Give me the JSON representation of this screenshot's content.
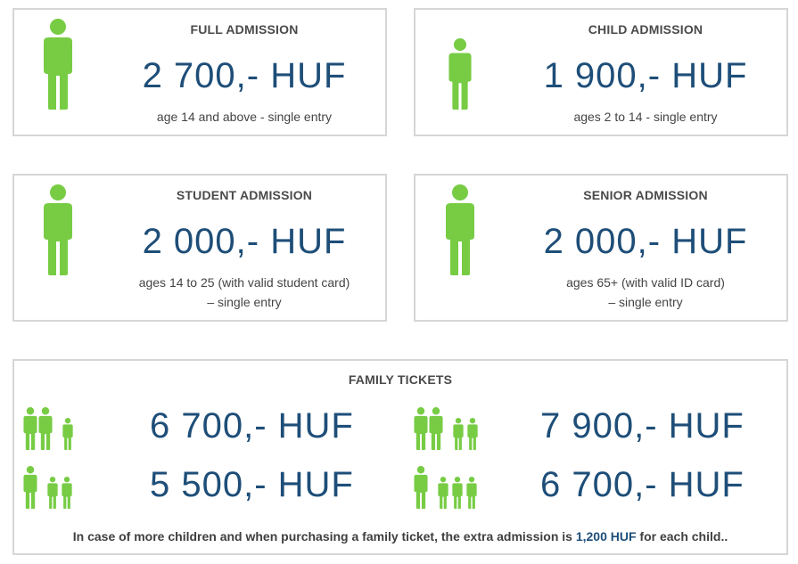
{
  "colors": {
    "accent": "#1e4e78",
    "icon_green": "#77cc44",
    "border": "#d6d6d6",
    "text": "#444444"
  },
  "tickets": [
    {
      "title": "FULL ADMISSION",
      "price": "2 700,- HUF",
      "desc_line1": "age 14 and above - single entry",
      "desc_line2": "",
      "icon": "adult-person-icon"
    },
    {
      "title": "CHILD ADMISSION",
      "price": "1 900,- HUF",
      "desc_line1": "ages 2 to 14 - single entry",
      "desc_line2": "",
      "icon": "child-person-icon"
    },
    {
      "title": "STUDENT ADMISSION",
      "price": "2 000,- HUF",
      "desc_line1": "ages 14 to 25 (with valid student card)",
      "desc_line2": "– single entry",
      "icon": "adult-person-icon"
    },
    {
      "title": "SENIOR ADMISSION",
      "price": "2 000,- HUF",
      "desc_line1": "ages 65+ (with valid ID card)",
      "desc_line2": "– single entry",
      "icon": "adult-person-icon"
    }
  ],
  "family": {
    "title": "FAMILY TICKETS",
    "options": [
      {
        "price": "6 700,- HUF",
        "adults": 2,
        "children": 1,
        "icon": "two-adults-one-child-icon"
      },
      {
        "price": "7 900,- HUF",
        "adults": 2,
        "children": 2,
        "icon": "two-adults-two-children-icon"
      },
      {
        "price": "5 500,- HUF",
        "adults": 1,
        "children": 2,
        "icon": "one-adult-two-children-icon"
      },
      {
        "price": "6 700,- HUF",
        "adults": 1,
        "children": 3,
        "icon": "one-adult-three-children-icon"
      }
    ],
    "note_before": "In case of more children and when purchasing a family ticket, the extra admission is",
    "note_highlight": "1,200 HUF",
    "note_after": "for each child.."
  }
}
